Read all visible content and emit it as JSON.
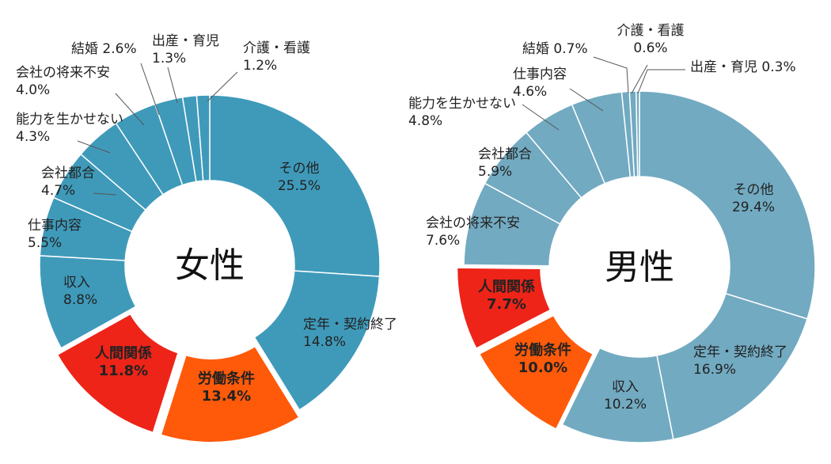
{
  "chart_data": [
    {
      "type": "pie",
      "donut": true,
      "center_label": "女性",
      "color": "#3f9aba",
      "highlight_colors": {
        "人間関係": "#ee2418",
        "労働条件": "#ff5a0a"
      },
      "slices": [
        {
          "label": "その他",
          "value": 25.5,
          "text": "25.5%"
        },
        {
          "label": "定年・契約終了",
          "value": 14.8,
          "text": "14.8%"
        },
        {
          "label": "労働条件",
          "value": 13.4,
          "text": "13.4%",
          "highlight": true
        },
        {
          "label": "人間関係",
          "value": 11.8,
          "text": "11.8%",
          "highlight": true
        },
        {
          "label": "収入",
          "value": 8.8,
          "text": "8.8%"
        },
        {
          "label": "仕事内容",
          "value": 5.5,
          "text": "5.5%"
        },
        {
          "label": "会社都合",
          "value": 4.7,
          "text": "4.7%"
        },
        {
          "label": "能力を生かせない",
          "value": 4.3,
          "text": "4.3%"
        },
        {
          "label": "会社の将来不安",
          "value": 4.0,
          "text": "4.0%"
        },
        {
          "label": "結婚",
          "value": 2.6,
          "text": "2.6%"
        },
        {
          "label": "出産・育児",
          "value": 1.3,
          "text": "1.3%"
        },
        {
          "label": "介護・看護",
          "value": 1.2,
          "text": "1.2%"
        }
      ]
    },
    {
      "type": "pie",
      "donut": true,
      "center_label": "男性",
      "color": "#72aac1",
      "highlight_colors": {
        "人間関係": "#ee2418",
        "労働条件": "#ff5a0a"
      },
      "slices": [
        {
          "label": "その他",
          "value": 29.4,
          "text": "29.4%"
        },
        {
          "label": "定年・契約終了",
          "value": 16.9,
          "text": "16.9%"
        },
        {
          "label": "収入",
          "value": 10.2,
          "text": "10.2%"
        },
        {
          "label": "労働条件",
          "value": 10.0,
          "text": "10.0%",
          "highlight": true
        },
        {
          "label": "人間関係",
          "value": 7.7,
          "text": "7.7%",
          "highlight": true
        },
        {
          "label": "会社の将来不安",
          "value": 7.6,
          "text": "7.6%"
        },
        {
          "label": "会社都合",
          "value": 5.9,
          "text": "5.9%"
        },
        {
          "label": "能力を生かせない",
          "value": 4.8,
          "text": "4.8%"
        },
        {
          "label": "仕事内容",
          "value": 4.6,
          "text": "4.6%"
        },
        {
          "label": "結婚",
          "value": 0.7,
          "text": "0.7%"
        },
        {
          "label": "介護・看護",
          "value": 0.6,
          "text": "0.6%"
        },
        {
          "label": "出産・育児",
          "value": 0.3,
          "text": "0.3%"
        }
      ]
    }
  ]
}
